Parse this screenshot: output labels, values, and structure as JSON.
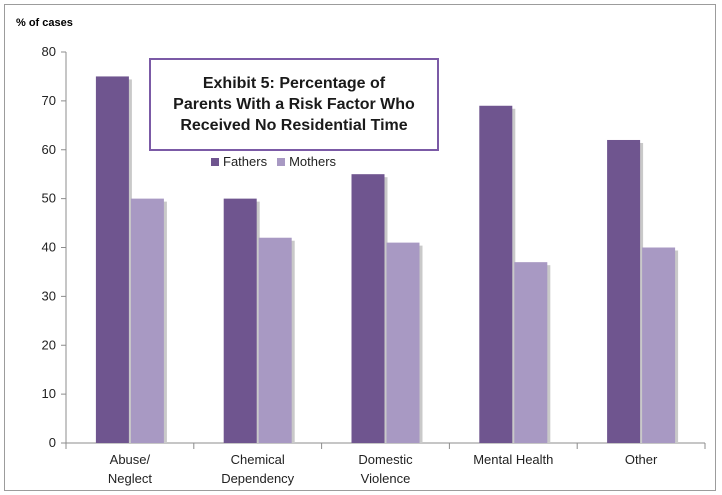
{
  "colors": {
    "fathers": "#6f558f",
    "mothers": "#a899c3",
    "title_border": "#7b5aa6"
  },
  "chart_data": {
    "type": "bar",
    "title": "Exhibit 5: Percentage of\nParents With a Risk Factor Who\nReceived No Residential Time",
    "ylabel": "% of cases",
    "xlabel": "",
    "ylim": [
      0,
      80
    ],
    "yticks": [
      0,
      10,
      20,
      30,
      40,
      50,
      60,
      70,
      80
    ],
    "categories": [
      [
        "Abuse/",
        "Neglect"
      ],
      [
        "Chemical",
        "Dependency"
      ],
      [
        "Domestic",
        "Violence"
      ],
      [
        "Mental Health"
      ],
      [
        "Other"
      ]
    ],
    "series": [
      {
        "name": "Fathers",
        "values": [
          75,
          50,
          55,
          69,
          62
        ]
      },
      {
        "name": "Mothers",
        "values": [
          50,
          42,
          41,
          37,
          40
        ]
      }
    ],
    "grid": false,
    "legend_position": "top-center"
  }
}
